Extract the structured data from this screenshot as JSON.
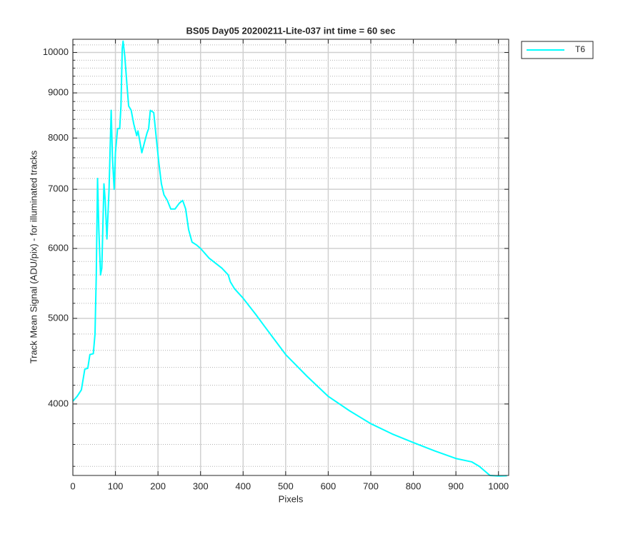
{
  "chart_data": {
    "type": "line",
    "title": "BS05 Day05 20200211-Lite-037 int time = 60 sec",
    "x_label": "Pixels",
    "y_label": "Track Mean Signal (ADU/pix) - for illuminated tracks",
    "y_scale": "log",
    "grid": true,
    "legend_position": "outside-right",
    "xlim": [
      0,
      1024
    ],
    "ylim": [
      3320,
      10350
    ],
    "xticks": [
      0,
      100,
      200,
      300,
      400,
      500,
      600,
      700,
      800,
      900,
      1000
    ],
    "yticks": [
      4000,
      5000,
      6000,
      7000,
      8000,
      9000,
      10000
    ],
    "yminorticks": [
      3400,
      3600,
      3800,
      4200,
      4400,
      4600,
      4800,
      5200,
      5400,
      5600,
      5800,
      6200,
      6400,
      6600,
      6800,
      7200,
      7400,
      7600,
      7800,
      8200,
      8400,
      8600,
      8800,
      9200,
      9400,
      9600,
      9800,
      10200
    ],
    "x": [
      0,
      10,
      20,
      28,
      35,
      40,
      48,
      52,
      55,
      58,
      61,
      65,
      68,
      73,
      76,
      80,
      85,
      90,
      93,
      97,
      100,
      105,
      110,
      113,
      116,
      118,
      122,
      127,
      131,
      137,
      143,
      150,
      153,
      158,
      162,
      168,
      174,
      178,
      182,
      190,
      196,
      202,
      208,
      214,
      222,
      230,
      240,
      250,
      258,
      265,
      272,
      280,
      290,
      300,
      320,
      350,
      365,
      370,
      380,
      400,
      430,
      450,
      500,
      550,
      600,
      650,
      700,
      750,
      800,
      850,
      900,
      937,
      955,
      980,
      1000,
      1020
    ],
    "series": [
      {
        "name": "T6",
        "color": "#00ffff",
        "values": [
          4030,
          4080,
          4150,
          4380,
          4390,
          4550,
          4560,
          4800,
          5600,
          7200,
          6300,
          5600,
          5700,
          7100,
          6800,
          6150,
          7000,
          8600,
          7600,
          7000,
          7700,
          8200,
          8200,
          8700,
          10100,
          10300,
          9900,
          9200,
          8700,
          8600,
          8300,
          8050,
          8150,
          7900,
          7700,
          7900,
          8100,
          8200,
          8600,
          8550,
          8000,
          7500,
          7100,
          6900,
          6800,
          6650,
          6650,
          6750,
          6800,
          6650,
          6300,
          6100,
          6057,
          6000,
          5850,
          5700,
          5600,
          5500,
          5400,
          5270,
          5050,
          4900,
          4550,
          4300,
          4080,
          3930,
          3800,
          3700,
          3617,
          3540,
          3470,
          3440,
          3400,
          3320,
          3315,
          3318
        ]
      }
    ]
  }
}
